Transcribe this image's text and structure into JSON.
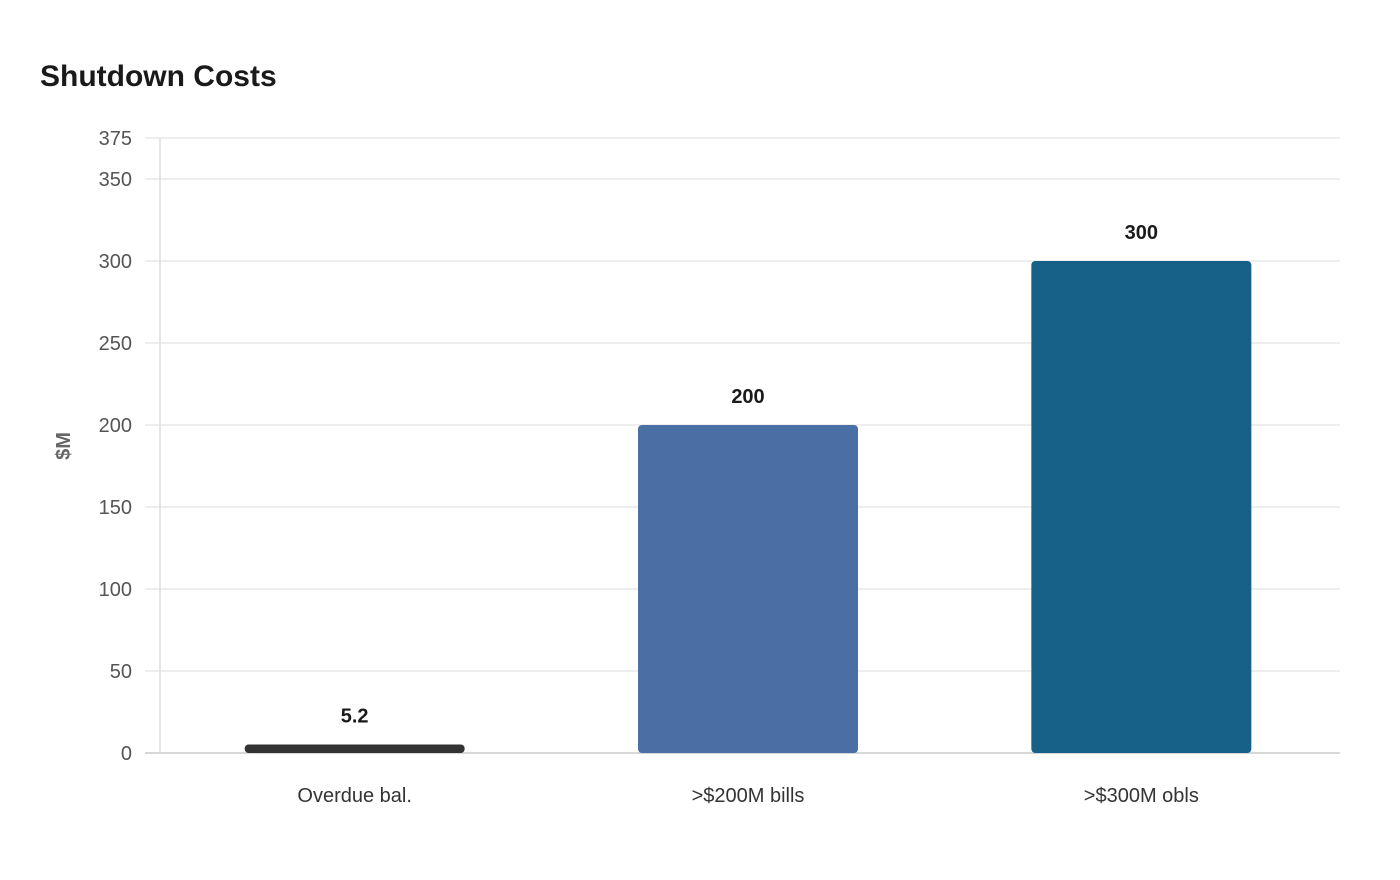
{
  "chart_data": {
    "type": "bar",
    "title": "Shutdown Costs",
    "xlabel": "",
    "ylabel": "$M",
    "categories": [
      "Overdue bal.",
      ">$200M bills",
      ">$300M obls"
    ],
    "values": [
      5.2,
      200,
      300
    ],
    "data_labels": [
      "5.2",
      "200",
      "300"
    ],
    "colors": [
      "#333333",
      "#4a6fa5",
      "#176087"
    ],
    "ylim": [
      0,
      375
    ],
    "yticks": [
      0,
      50,
      100,
      150,
      200,
      250,
      300,
      350,
      375
    ],
    "grid": true,
    "legend": "none"
  }
}
